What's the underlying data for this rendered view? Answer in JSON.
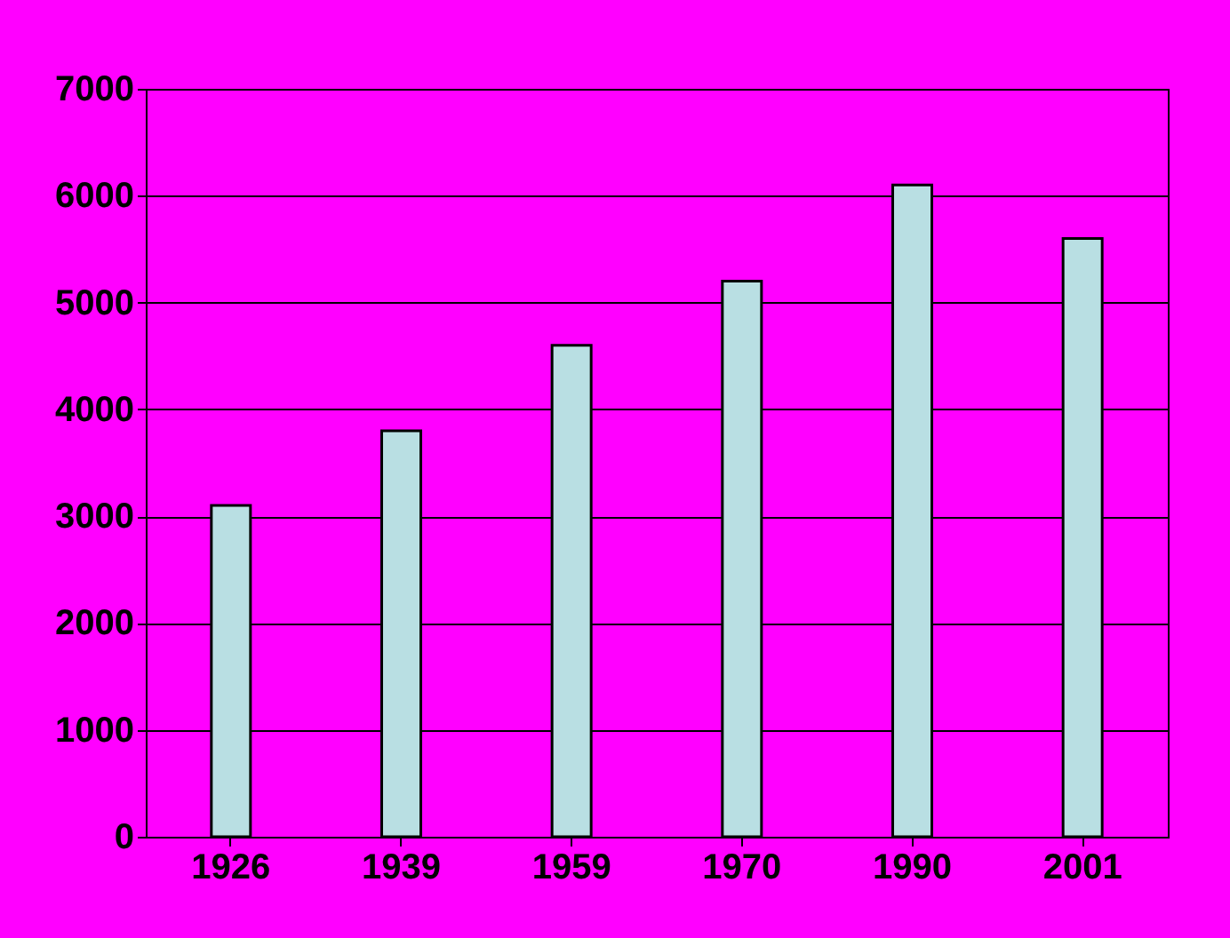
{
  "chart_data": {
    "type": "bar",
    "categories": [
      "1926",
      "1939",
      "1959",
      "1970",
      "1990",
      "2001"
    ],
    "values": [
      3100,
      3800,
      4600,
      5200,
      6100,
      5600
    ],
    "color": "#b9dfe3",
    "ylim": [
      0,
      7000
    ],
    "yticks": [
      0,
      1000,
      2000,
      3000,
      4000,
      5000,
      6000,
      7000
    ],
    "grid": "y"
  }
}
